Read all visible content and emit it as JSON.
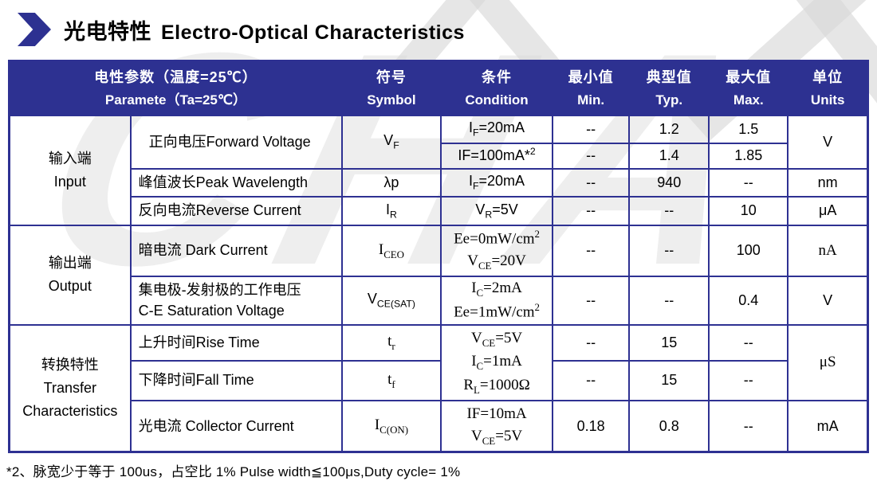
{
  "title": {
    "zh": "光电特性",
    "en": "Electro-Optical Characteristics"
  },
  "watermark_text": "CHA",
  "colors": {
    "header_bg": "#2d3191",
    "border": "#2e3192",
    "header_text": "#ffffff",
    "watermark": "#d9d9d9",
    "text": "#000000"
  },
  "header": {
    "parameter": {
      "zh": "电性参数（温度=25℃）",
      "en": "Paramete（Ta=25℃）"
    },
    "symbol": {
      "zh": "符号",
      "en": "Symbol"
    },
    "condition": {
      "zh": "条件",
      "en": "Condition"
    },
    "min": {
      "zh": "最小值",
      "en": "Min."
    },
    "typ": {
      "zh": "典型值",
      "en": "Typ."
    },
    "max": {
      "zh": "最大值",
      "en": "Max."
    },
    "units": {
      "zh": "单位",
      "en": "Units"
    }
  },
  "groups": {
    "input": {
      "zh": "输入端",
      "en": "Input"
    },
    "output": {
      "zh": "输出端",
      "en": "Output"
    },
    "transfer": {
      "zh": "转换特性",
      "en1": "Transfer",
      "en2": "Characteristics"
    }
  },
  "rows": {
    "forward_voltage": {
      "param": "正向电压Forward Voltage",
      "symbol": "V<sub>F</sub>",
      "cond_a": "I<sub>F</sub>=20mA",
      "min_a": "--",
      "typ_a": "1.2",
      "max_a": "1.5",
      "cond_b": "IF=100mA*<sup>2</sup>",
      "min_b": "--",
      "typ_b": "1.4",
      "max_b": "1.85",
      "unit": "V"
    },
    "peak_wavelength": {
      "param": "峰值波长Peak Wavelength",
      "symbol": "λp",
      "cond": "I<sub>F</sub>=20mA",
      "min": "--",
      "typ": "940",
      "max": "--",
      "unit": "nm"
    },
    "reverse_current": {
      "param": "反向电流Reverse Current",
      "symbol": "I<sub>R</sub>",
      "cond": "V<sub>R</sub>=5V",
      "min": "--",
      "typ": "--",
      "max": "10",
      "unit": "μA"
    },
    "dark_current": {
      "param": "暗电流  Dark Current",
      "symbol": "I<sub>CEO</sub>",
      "cond": "Ee=0mW/cm<sup>2</sup><br>V<sub>CE</sub>=20V",
      "min": "--",
      "typ": "--",
      "max": "100",
      "unit": "nA"
    },
    "ce_saturation": {
      "param": "集电极-发射极的工作电压<br>C-E Saturation Voltage",
      "symbol": "V<sub>CE(SAT)</sub>",
      "cond": "I<sub>C</sub>=2mA<br>Ee=1mW/cm<sup>2</sup>",
      "min": "--",
      "typ": "--",
      "max": "0.4",
      "unit": "V"
    },
    "rise_time": {
      "param": "上升时间Rise Time",
      "symbol": "t<sub>r</sub>",
      "min": "--",
      "typ": "15",
      "max": "--"
    },
    "fall_time": {
      "param": "下降时间Fall Time",
      "symbol": "t<sub>f</sub>",
      "min": "--",
      "typ": "15",
      "max": "--"
    },
    "rise_fall_condition": "V<sub>CE</sub>=5V<br>I<sub>C</sub>=1mA<br>R<sub>L</sub>=1000Ω",
    "rise_fall_unit": "μS",
    "collector_current": {
      "param": "光电流  Collector Current",
      "symbol": "I<sub>C(ON)</sub>",
      "cond": "IF=10mA<br>V<sub>CE</sub>=5V",
      "min": "0.18",
      "typ": "0.8",
      "max": "--",
      "unit": "mA"
    }
  },
  "footnote": "*2、脉宽少于等于 100us，占空比 1% Pulse width≦100μs,Duty cycle= 1%"
}
